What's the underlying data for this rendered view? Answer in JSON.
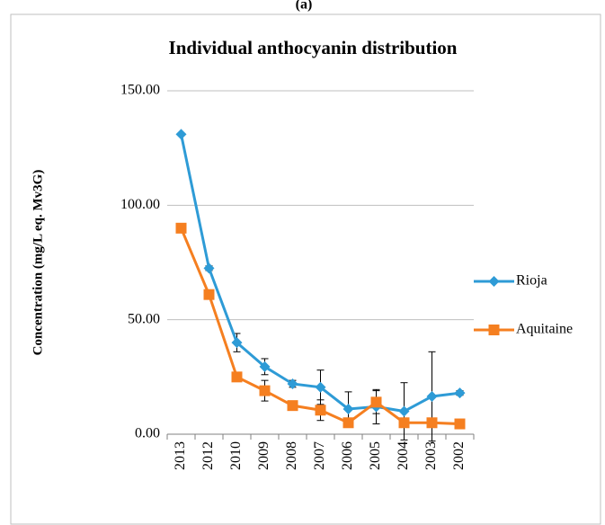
{
  "chart_data": {
    "type": "line",
    "label": "(a)",
    "title": "Individual anthocyanin distribution",
    "ylabel": "Concentration (mg/L eq. Mv3G)",
    "categories": [
      "2013",
      "2012",
      "2010",
      "2009",
      "2008",
      "2007",
      "2006",
      "2005",
      "2004",
      "2003",
      "2002"
    ],
    "series": [
      {
        "name": "Rioja",
        "color": "#2e9bd6",
        "marker": "diamond",
        "values": [
          131,
          72.5,
          40,
          29.5,
          22,
          20.5,
          11,
          12,
          10,
          16.5,
          18
        ],
        "errors": [
          0,
          1,
          4,
          3.5,
          1.5,
          7.5,
          7.5,
          7.5,
          12.5,
          19.5,
          1
        ]
      },
      {
        "name": "Aquitaine",
        "color": "#f57f20",
        "marker": "square",
        "values": [
          90,
          61,
          25,
          19,
          12.5,
          10.5,
          5,
          14,
          5,
          5,
          4.5
        ],
        "errors": [
          0,
          0,
          0,
          4.5,
          0,
          4.5,
          0,
          5,
          0,
          0,
          0
        ]
      }
    ],
    "ylim": [
      0,
      150
    ],
    "yticks": [
      {
        "value": 0,
        "label": "0.00"
      },
      {
        "value": 50,
        "label": "50.00"
      },
      {
        "value": 100,
        "label": "100.00"
      },
      {
        "value": 150,
        "label": "150.00"
      }
    ],
    "grid": true,
    "legend": "right"
  }
}
